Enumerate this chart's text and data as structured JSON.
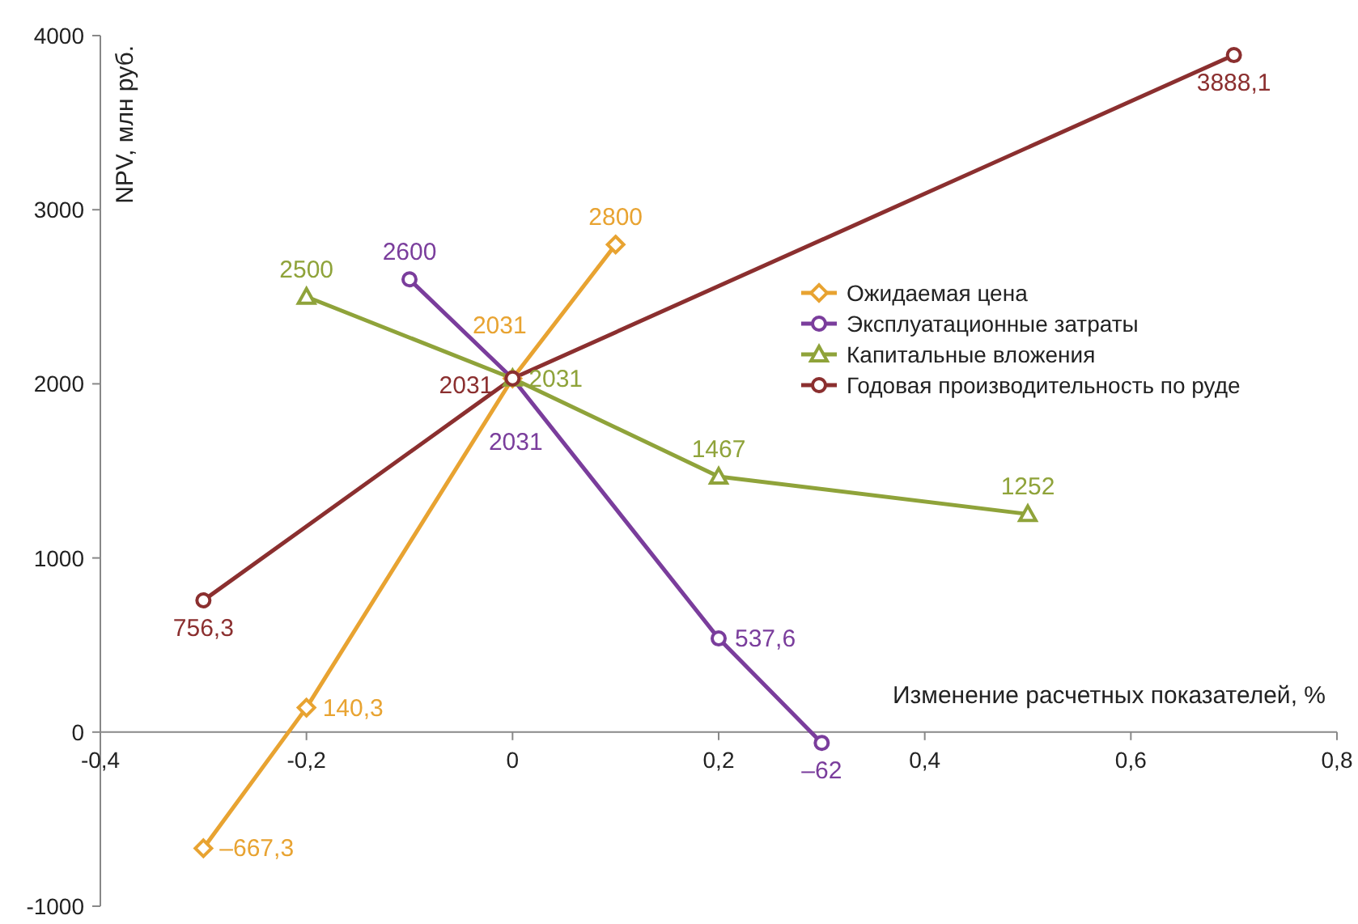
{
  "chart_data": {
    "type": "line",
    "xlabel": "Изменение расчетных показателей, %",
    "ylabel": "NPV, млн руб.",
    "xlim": [
      -0.4,
      0.8
    ],
    "xticks": [
      {
        "value": -0.4,
        "label": "-0,4"
      },
      {
        "value": -0.2,
        "label": "-0,2"
      },
      {
        "value": 0,
        "label": "0"
      },
      {
        "value": 0.2,
        "label": "0,2"
      },
      {
        "value": 0.4,
        "label": "0,4"
      },
      {
        "value": 0.6,
        "label": "0,6"
      },
      {
        "value": 0.8,
        "label": "0,8"
      }
    ],
    "ylim": [
      -1000,
      4000
    ],
    "yticks": [
      -1000,
      0,
      1000,
      2000,
      3000,
      4000
    ],
    "grid": false,
    "legend": "right",
    "line_style": "solid",
    "series": [
      {
        "name": "Ожидаемая цена",
        "color": "#e8a331",
        "marker": "diamond",
        "x": [
          -0.3,
          -0.2,
          0,
          0.1
        ],
        "values": [
          -667.3,
          140.3,
          2031,
          2800
        ],
        "value_labels": [
          "–667,3",
          "140,3",
          "2031",
          "2800"
        ]
      },
      {
        "name": "Эксплуатационные затраты",
        "color": "#7a3d9c",
        "marker": "circle",
        "x": [
          -0.1,
          0,
          0.2,
          0.3
        ],
        "values": [
          2600,
          2031,
          537.6,
          -62
        ],
        "value_labels": [
          "2600",
          "2031",
          "537,6",
          "–62"
        ]
      },
      {
        "name": "Капитальные вложения",
        "color": "#8fa33a",
        "marker": "triangle",
        "x": [
          -0.2,
          0,
          0.2,
          0.5
        ],
        "values": [
          2500,
          2031,
          1467,
          1252
        ],
        "value_labels": [
          "2500",
          "2031",
          "1467",
          "1252"
        ]
      },
      {
        "name": "Годовая производительность по руде",
        "color": "#8b2f2f",
        "marker": "circle",
        "x": [
          -0.3,
          0,
          0.7
        ],
        "values": [
          756.3,
          2031,
          3888.1
        ],
        "value_labels": [
          "756,3",
          "2031",
          "3888,1"
        ]
      }
    ]
  }
}
